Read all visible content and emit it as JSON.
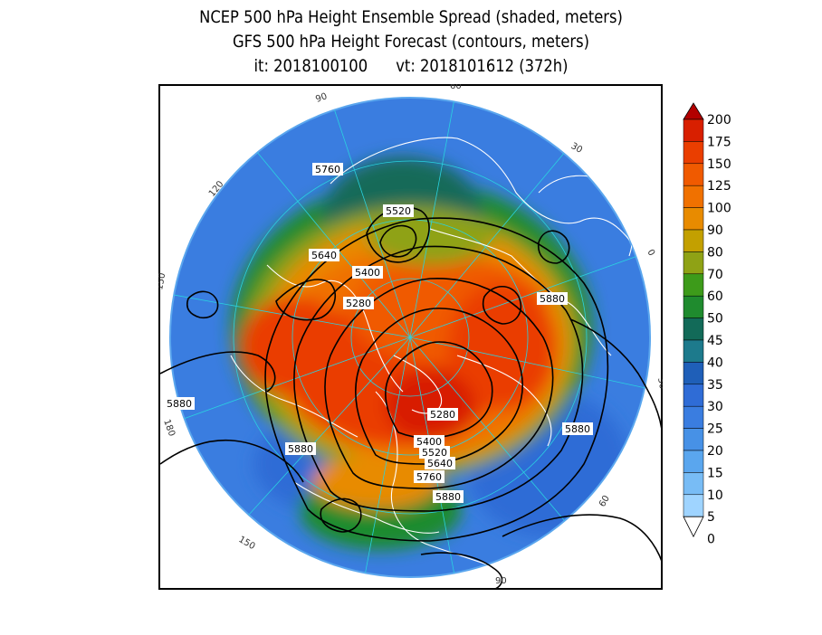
{
  "title": {
    "line1": "NCEP 500 hPa Height Ensemble Spread (shaded, meters)",
    "line2": "GFS 500 hPa Height Forecast (contours, meters)",
    "line3": "it: 2018100100      vt: 2018101612 (372h)"
  },
  "colorbar": {
    "levels": [
      "0",
      "5",
      "10",
      "15",
      "20",
      "25",
      "30",
      "35",
      "40",
      "45",
      "50",
      "60",
      "70",
      "80",
      "90",
      "100",
      "125",
      "150",
      "175",
      "200"
    ],
    "colors": [
      "#9fd4ff",
      "#78bcf5",
      "#5aa6ee",
      "#4791e6",
      "#3a7de0",
      "#2f6cd6",
      "#1f5fb8",
      "#1d7a8c",
      "#126a58",
      "#1f8b2e",
      "#3d9b1a",
      "#8fa215",
      "#c3a000",
      "#e88b00",
      "#f07100",
      "#f05a00",
      "#ea3e00",
      "#d81f00",
      "#b30000"
    ]
  },
  "contour_labels": [
    "5520",
    "5760",
    "5640",
    "5400",
    "5280",
    "5880",
    "5880",
    "5880",
    "5280",
    "5400",
    "5520",
    "5640",
    "5760",
    "5880",
    "5880"
  ],
  "gridline_labels": [
    "60",
    "30",
    "0",
    "30",
    "60",
    "90",
    "120",
    "150",
    "180",
    "150",
    "120",
    "90"
  ],
  "colors": {
    "land_outline": "#ffffff",
    "contour": "#000000",
    "gridline": "#2ad2e0"
  }
}
